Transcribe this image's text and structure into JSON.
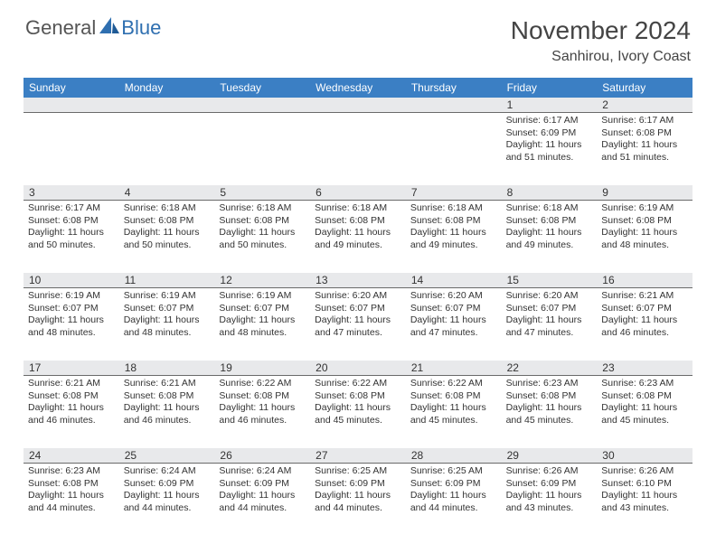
{
  "logo": {
    "text1": "General",
    "text2": "Blue"
  },
  "title": "November 2024",
  "location": "Sanhirou, Ivory Coast",
  "day_headers": [
    "Sunday",
    "Monday",
    "Tuesday",
    "Wednesday",
    "Thursday",
    "Friday",
    "Saturday"
  ],
  "colors": {
    "header_bg": "#3b7fc4",
    "band_bg": "#e8e9eb",
    "band_border": "#6a6a6a",
    "logo_blue": "#2f6fb0"
  },
  "weeks": [
    [
      {
        "day": "",
        "sunrise": "",
        "sunset": "",
        "daylight": ""
      },
      {
        "day": "",
        "sunrise": "",
        "sunset": "",
        "daylight": ""
      },
      {
        "day": "",
        "sunrise": "",
        "sunset": "",
        "daylight": ""
      },
      {
        "day": "",
        "sunrise": "",
        "sunset": "",
        "daylight": ""
      },
      {
        "day": "",
        "sunrise": "",
        "sunset": "",
        "daylight": ""
      },
      {
        "day": "1",
        "sunrise": "Sunrise: 6:17 AM",
        "sunset": "Sunset: 6:09 PM",
        "daylight": "Daylight: 11 hours and 51 minutes."
      },
      {
        "day": "2",
        "sunrise": "Sunrise: 6:17 AM",
        "sunset": "Sunset: 6:08 PM",
        "daylight": "Daylight: 11 hours and 51 minutes."
      }
    ],
    [
      {
        "day": "3",
        "sunrise": "Sunrise: 6:17 AM",
        "sunset": "Sunset: 6:08 PM",
        "daylight": "Daylight: 11 hours and 50 minutes."
      },
      {
        "day": "4",
        "sunrise": "Sunrise: 6:18 AM",
        "sunset": "Sunset: 6:08 PM",
        "daylight": "Daylight: 11 hours and 50 minutes."
      },
      {
        "day": "5",
        "sunrise": "Sunrise: 6:18 AM",
        "sunset": "Sunset: 6:08 PM",
        "daylight": "Daylight: 11 hours and 50 minutes."
      },
      {
        "day": "6",
        "sunrise": "Sunrise: 6:18 AM",
        "sunset": "Sunset: 6:08 PM",
        "daylight": "Daylight: 11 hours and 49 minutes."
      },
      {
        "day": "7",
        "sunrise": "Sunrise: 6:18 AM",
        "sunset": "Sunset: 6:08 PM",
        "daylight": "Daylight: 11 hours and 49 minutes."
      },
      {
        "day": "8",
        "sunrise": "Sunrise: 6:18 AM",
        "sunset": "Sunset: 6:08 PM",
        "daylight": "Daylight: 11 hours and 49 minutes."
      },
      {
        "day": "9",
        "sunrise": "Sunrise: 6:19 AM",
        "sunset": "Sunset: 6:08 PM",
        "daylight": "Daylight: 11 hours and 48 minutes."
      }
    ],
    [
      {
        "day": "10",
        "sunrise": "Sunrise: 6:19 AM",
        "sunset": "Sunset: 6:07 PM",
        "daylight": "Daylight: 11 hours and 48 minutes."
      },
      {
        "day": "11",
        "sunrise": "Sunrise: 6:19 AM",
        "sunset": "Sunset: 6:07 PM",
        "daylight": "Daylight: 11 hours and 48 minutes."
      },
      {
        "day": "12",
        "sunrise": "Sunrise: 6:19 AM",
        "sunset": "Sunset: 6:07 PM",
        "daylight": "Daylight: 11 hours and 48 minutes."
      },
      {
        "day": "13",
        "sunrise": "Sunrise: 6:20 AM",
        "sunset": "Sunset: 6:07 PM",
        "daylight": "Daylight: 11 hours and 47 minutes."
      },
      {
        "day": "14",
        "sunrise": "Sunrise: 6:20 AM",
        "sunset": "Sunset: 6:07 PM",
        "daylight": "Daylight: 11 hours and 47 minutes."
      },
      {
        "day": "15",
        "sunrise": "Sunrise: 6:20 AM",
        "sunset": "Sunset: 6:07 PM",
        "daylight": "Daylight: 11 hours and 47 minutes."
      },
      {
        "day": "16",
        "sunrise": "Sunrise: 6:21 AM",
        "sunset": "Sunset: 6:07 PM",
        "daylight": "Daylight: 11 hours and 46 minutes."
      }
    ],
    [
      {
        "day": "17",
        "sunrise": "Sunrise: 6:21 AM",
        "sunset": "Sunset: 6:08 PM",
        "daylight": "Daylight: 11 hours and 46 minutes."
      },
      {
        "day": "18",
        "sunrise": "Sunrise: 6:21 AM",
        "sunset": "Sunset: 6:08 PM",
        "daylight": "Daylight: 11 hours and 46 minutes."
      },
      {
        "day": "19",
        "sunrise": "Sunrise: 6:22 AM",
        "sunset": "Sunset: 6:08 PM",
        "daylight": "Daylight: 11 hours and 46 minutes."
      },
      {
        "day": "20",
        "sunrise": "Sunrise: 6:22 AM",
        "sunset": "Sunset: 6:08 PM",
        "daylight": "Daylight: 11 hours and 45 minutes."
      },
      {
        "day": "21",
        "sunrise": "Sunrise: 6:22 AM",
        "sunset": "Sunset: 6:08 PM",
        "daylight": "Daylight: 11 hours and 45 minutes."
      },
      {
        "day": "22",
        "sunrise": "Sunrise: 6:23 AM",
        "sunset": "Sunset: 6:08 PM",
        "daylight": "Daylight: 11 hours and 45 minutes."
      },
      {
        "day": "23",
        "sunrise": "Sunrise: 6:23 AM",
        "sunset": "Sunset: 6:08 PM",
        "daylight": "Daylight: 11 hours and 45 minutes."
      }
    ],
    [
      {
        "day": "24",
        "sunrise": "Sunrise: 6:23 AM",
        "sunset": "Sunset: 6:08 PM",
        "daylight": "Daylight: 11 hours and 44 minutes."
      },
      {
        "day": "25",
        "sunrise": "Sunrise: 6:24 AM",
        "sunset": "Sunset: 6:09 PM",
        "daylight": "Daylight: 11 hours and 44 minutes."
      },
      {
        "day": "26",
        "sunrise": "Sunrise: 6:24 AM",
        "sunset": "Sunset: 6:09 PM",
        "daylight": "Daylight: 11 hours and 44 minutes."
      },
      {
        "day": "27",
        "sunrise": "Sunrise: 6:25 AM",
        "sunset": "Sunset: 6:09 PM",
        "daylight": "Daylight: 11 hours and 44 minutes."
      },
      {
        "day": "28",
        "sunrise": "Sunrise: 6:25 AM",
        "sunset": "Sunset: 6:09 PM",
        "daylight": "Daylight: 11 hours and 44 minutes."
      },
      {
        "day": "29",
        "sunrise": "Sunrise: 6:26 AM",
        "sunset": "Sunset: 6:09 PM",
        "daylight": "Daylight: 11 hours and 43 minutes."
      },
      {
        "day": "30",
        "sunrise": "Sunrise: 6:26 AM",
        "sunset": "Sunset: 6:10 PM",
        "daylight": "Daylight: 11 hours and 43 minutes."
      }
    ]
  ]
}
